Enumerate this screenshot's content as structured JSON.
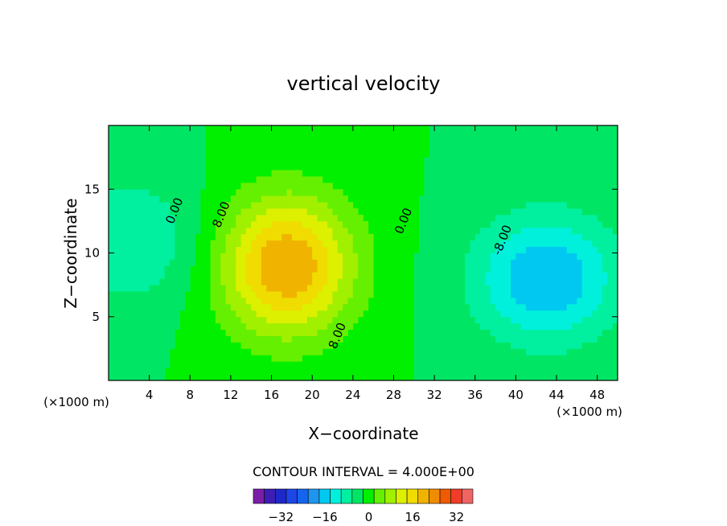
{
  "chart_data": {
    "type": "heatmap",
    "title": "vertical velocity",
    "xlabel": "X−coordinate",
    "ylabel": "Z−coordinate",
    "x_unit_left": "(×1000 m)",
    "x_unit_right": "(×1000 m)",
    "xlim": [
      0,
      50
    ],
    "ylim": [
      0,
      20
    ],
    "x_ticks": [
      4,
      8,
      12,
      16,
      20,
      24,
      28,
      32,
      36,
      40,
      44,
      48
    ],
    "y_ticks": [
      5,
      10,
      15
    ],
    "contour_interval_text": "CONTOUR INTERVAL =  4.000E+00",
    "contour_labels": [
      {
        "text": "0.00",
        "x": 6.5,
        "y": 13.3
      },
      {
        "text": "0.00",
        "x": 29.0,
        "y": 12.5
      },
      {
        "text": "8.00",
        "x": 11.1,
        "y": 13.0
      },
      {
        "text": "8.00",
        "x": 22.5,
        "y": 3.5
      },
      {
        "text": "-8.00",
        "x": 38.7,
        "y": 11.0
      }
    ],
    "features": [
      {
        "kind": "updraft",
        "center_x": 17.5,
        "center_z": 9,
        "max_value": 24
      },
      {
        "kind": "downdraft",
        "center_x": 43,
        "center_z": 8,
        "min_value": -16
      },
      {
        "kind": "downdraft",
        "center_x": 2,
        "center_z": 11,
        "min_value": -8
      }
    ],
    "colorbar": {
      "ticks": [
        -32,
        -16,
        0,
        16,
        32
      ],
      "levels": [
        -40,
        -36,
        -32,
        -28,
        -24,
        -20,
        -16,
        -12,
        -8,
        -4,
        0,
        4,
        8,
        12,
        16,
        20,
        24,
        28,
        32,
        36,
        40
      ],
      "colors": [
        "#7a1ea8",
        "#3c1eb4",
        "#1e28c8",
        "#1e46e6",
        "#1464f0",
        "#1e96f0",
        "#00c8f0",
        "#00f0dc",
        "#00f0a0",
        "#00e664",
        "#00f000",
        "#64f000",
        "#a0f000",
        "#dcf000",
        "#f0dc00",
        "#f0b400",
        "#f08c00",
        "#f05a00",
        "#f03c28",
        "#f06464",
        "#f0a0a0"
      ]
    }
  }
}
